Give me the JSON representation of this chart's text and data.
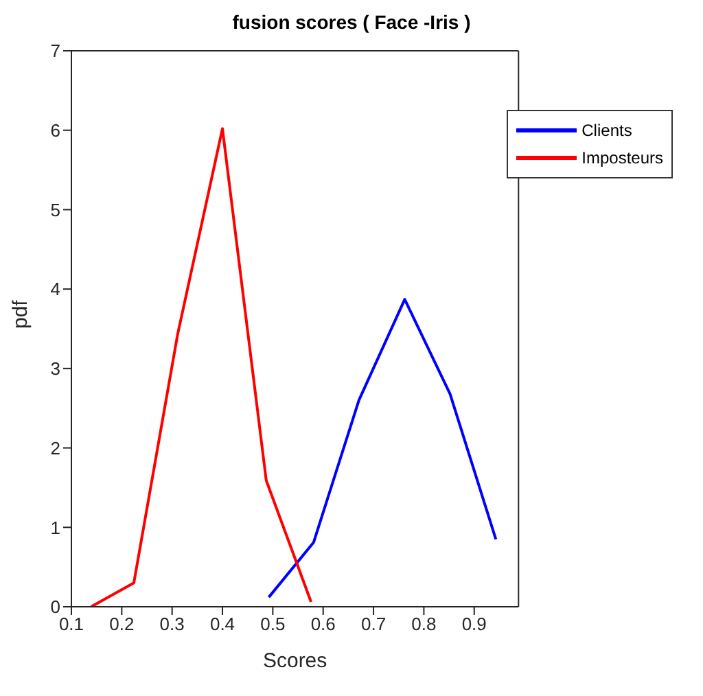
{
  "chart_data": {
    "type": "line",
    "title": "fusion scores ( Face -Iris )",
    "xlabel": "Scores",
    "ylabel": "pdf",
    "xlim": [
      0.1,
      0.988
    ],
    "xticks": [
      0.1,
      0.2,
      0.3,
      0.4,
      0.5,
      0.6,
      0.7,
      0.8,
      0.9
    ],
    "ylim": [
      0,
      7
    ],
    "yticks": [
      0,
      1,
      2,
      3,
      4,
      5,
      6,
      7
    ],
    "grid": false,
    "legend": "top right",
    "marker": "none",
    "line_style": "solid",
    "series": [
      {
        "name": "Clients",
        "color": "#0000ff",
        "x": [
          0.492,
          0.581,
          0.671,
          0.762,
          0.852,
          0.943
        ],
        "values": [
          0.12,
          0.81,
          2.6,
          3.87,
          2.68,
          0.85
        ]
      },
      {
        "name": "Imposteurs",
        "color": "#ff0000",
        "x": [
          0.139,
          0.224,
          0.311,
          0.4,
          0.487,
          0.576
        ],
        "values": [
          0,
          0.3,
          3.43,
          6.02,
          1.59,
          0.06
        ]
      }
    ]
  }
}
